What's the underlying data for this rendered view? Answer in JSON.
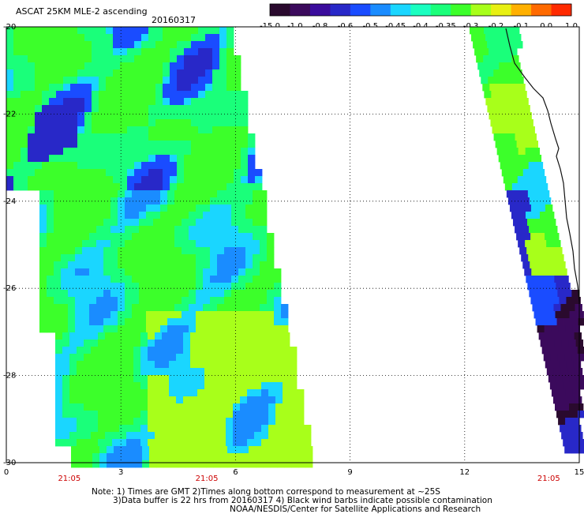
{
  "header": {
    "title": "ASCAT 25KM MLE-2 ascending",
    "date": "20160317"
  },
  "colorbar": {
    "labels": [
      "-15.0",
      "-1.0",
      "-0.8",
      "-0.6",
      "-0.5",
      "-0.45",
      "-0.4",
      "-0.35",
      "-0.3",
      "-0.2",
      "-0.1",
      "0.0",
      "1.0"
    ],
    "colors": [
      "#2a0a2e",
      "#3b0a5c",
      "#3a0c9c",
      "#2828c8",
      "#1a4cff",
      "#1a8cff",
      "#1ad6ff",
      "#1affc0",
      "#1aff7a",
      "#3cff2a",
      "#a8ff1a",
      "#e8f012",
      "#ffb000",
      "#ff6a00",
      "#ff2a00"
    ]
  },
  "map": {
    "y_axis": {
      "labels": [
        "-20",
        "-22",
        "-24",
        "-26",
        "-28",
        "-30"
      ],
      "values": [
        -20,
        -22,
        -24,
        -26,
        -28,
        -30
      ]
    },
    "x_axis": {
      "labels": [
        "0",
        "3",
        "6",
        "9",
        "12",
        "15"
      ],
      "values": [
        0,
        3,
        6,
        9,
        12,
        15
      ]
    },
    "lon_range": [
      0,
      15
    ],
    "lat_range": [
      -30,
      -20
    ],
    "grid": "dotted",
    "swath_times": [
      "21:05",
      "21:05",
      "21:05"
    ],
    "time_color": "#cc0000"
  },
  "notes": {
    "line1": "Note: 1) Times are GMT 2)Times along bottom correspond to measurement at ~25S",
    "line2": "3)Data buffer is 22 hrs from 20160317 4) Black wind barbs indicate possible contamination",
    "line3": "NOAA/NESDIS/Center for Satellite Applications and Research"
  }
}
